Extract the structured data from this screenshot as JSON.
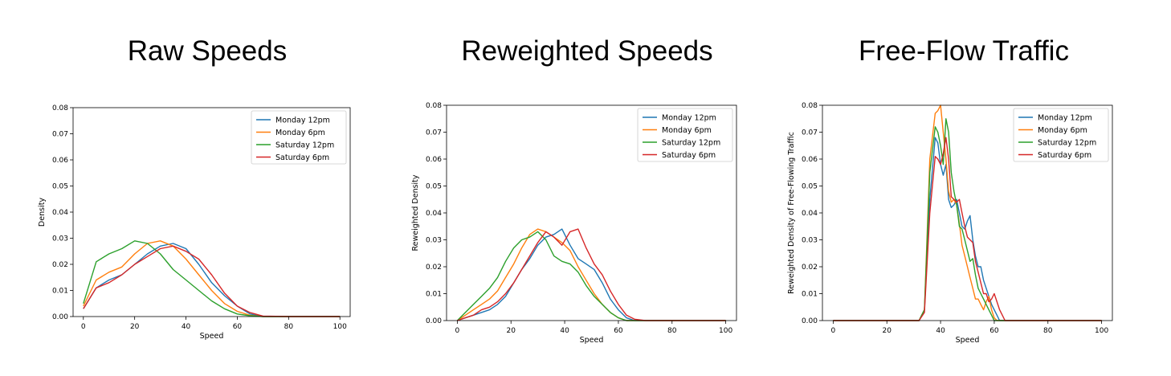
{
  "panels": [
    {
      "title": "Raw Speeds"
    },
    {
      "title": "Reweighted Speeds"
    },
    {
      "title": "Free-Flow Traffic"
    }
  ],
  "colors": {
    "monday_12pm": "#1f77b4",
    "monday_6pm": "#ff7f0e",
    "saturday_12pm": "#2ca02c",
    "saturday_6pm": "#d62728"
  },
  "chart_data": [
    {
      "type": "line",
      "title": "Raw Speeds",
      "xlabel": "Speed",
      "ylabel": "Density",
      "xlim": [
        -4,
        104
      ],
      "ylim": [
        0,
        0.08
      ],
      "xticks": [
        0,
        20,
        40,
        60,
        80,
        100
      ],
      "yticks": [
        0.0,
        0.01,
        0.02,
        0.03,
        0.04,
        0.05,
        0.06,
        0.07,
        0.08
      ],
      "ytick_labels": [
        "0.00",
        "0.01",
        "0.02",
        "0.03",
        "0.04",
        "0.05",
        "0.06",
        "0.07",
        "0.08"
      ],
      "legend": "top-right",
      "x": [
        0,
        5,
        10,
        15,
        20,
        25,
        30,
        35,
        40,
        45,
        50,
        55,
        60,
        65,
        70,
        80,
        90,
        100
      ],
      "series": [
        {
          "name": "Monday 12pm",
          "color": "#1f77b4",
          "values": [
            0.003,
            0.011,
            0.014,
            0.016,
            0.02,
            0.024,
            0.027,
            0.028,
            0.026,
            0.02,
            0.013,
            0.008,
            0.004,
            0.001,
            0.0,
            0.0,
            0.0,
            0.0
          ]
        },
        {
          "name": "Monday 6pm",
          "color": "#ff7f0e",
          "values": [
            0.004,
            0.014,
            0.017,
            0.019,
            0.024,
            0.028,
            0.029,
            0.027,
            0.022,
            0.016,
            0.01,
            0.005,
            0.002,
            0.0005,
            0.0,
            0.0,
            0.0,
            0.0
          ]
        },
        {
          "name": "Saturday 12pm",
          "color": "#2ca02c",
          "values": [
            0.005,
            0.021,
            0.024,
            0.026,
            0.029,
            0.028,
            0.024,
            0.018,
            0.014,
            0.01,
            0.006,
            0.003,
            0.001,
            0.0003,
            0.0,
            0.0,
            0.0,
            0.0
          ]
        },
        {
          "name": "Saturday 6pm",
          "color": "#d62728",
          "values": [
            0.003,
            0.011,
            0.013,
            0.016,
            0.02,
            0.023,
            0.026,
            0.027,
            0.025,
            0.022,
            0.016,
            0.009,
            0.004,
            0.0015,
            0.0002,
            0.0,
            0.0,
            0.0
          ]
        }
      ]
    },
    {
      "type": "line",
      "title": "Reweighted Speeds",
      "xlabel": "Speed",
      "ylabel": "Reweighted Density",
      "xlim": [
        -4,
        104
      ],
      "ylim": [
        0,
        0.08
      ],
      "xticks": [
        0,
        20,
        40,
        60,
        80,
        100
      ],
      "yticks": [
        0.0,
        0.01,
        0.02,
        0.03,
        0.04,
        0.05,
        0.06,
        0.07,
        0.08
      ],
      "ytick_labels": [
        "0.00",
        "0.01",
        "0.02",
        "0.03",
        "0.04",
        "0.05",
        "0.06",
        "0.07",
        "0.08"
      ],
      "legend": "top-right",
      "x": [
        0,
        3,
        6,
        9,
        12,
        15,
        18,
        21,
        24,
        27,
        30,
        33,
        36,
        39,
        42,
        45,
        48,
        51,
        54,
        57,
        60,
        63,
        66,
        70,
        80,
        90,
        100
      ],
      "series": [
        {
          "name": "Monday 12pm",
          "color": "#1f77b4",
          "values": [
            0.0,
            0.001,
            0.002,
            0.003,
            0.004,
            0.006,
            0.009,
            0.014,
            0.019,
            0.023,
            0.028,
            0.031,
            0.032,
            0.034,
            0.028,
            0.023,
            0.021,
            0.019,
            0.014,
            0.008,
            0.004,
            0.001,
            0.0,
            0.0,
            0.0,
            0.0,
            0.0
          ]
        },
        {
          "name": "Monday 6pm",
          "color": "#ff7f0e",
          "values": [
            0.0,
            0.002,
            0.004,
            0.006,
            0.008,
            0.011,
            0.016,
            0.021,
            0.027,
            0.032,
            0.034,
            0.033,
            0.031,
            0.029,
            0.026,
            0.02,
            0.015,
            0.01,
            0.006,
            0.003,
            0.001,
            0.0,
            0.0,
            0.0,
            0.0,
            0.0,
            0.0
          ]
        },
        {
          "name": "Saturday 12pm",
          "color": "#2ca02c",
          "values": [
            0.0,
            0.003,
            0.006,
            0.009,
            0.012,
            0.016,
            0.022,
            0.027,
            0.03,
            0.031,
            0.033,
            0.03,
            0.024,
            0.022,
            0.021,
            0.018,
            0.013,
            0.009,
            0.006,
            0.003,
            0.001,
            0.0,
            0.0,
            0.0,
            0.0,
            0.0,
            0.0
          ]
        },
        {
          "name": "Saturday 6pm",
          "color": "#d62728",
          "values": [
            0.0,
            0.001,
            0.002,
            0.004,
            0.005,
            0.007,
            0.01,
            0.014,
            0.019,
            0.024,
            0.029,
            0.033,
            0.031,
            0.028,
            0.033,
            0.034,
            0.027,
            0.021,
            0.017,
            0.011,
            0.006,
            0.002,
            0.0005,
            0.0,
            0.0,
            0.0,
            0.0
          ]
        }
      ]
    },
    {
      "type": "line",
      "title": "Free-Flow Traffic",
      "xlabel": "Speed",
      "ylabel": "Reweighted Density of Free-Flowing Traffic",
      "xlim": [
        -4,
        104
      ],
      "ylim": [
        0,
        0.08
      ],
      "xticks": [
        0,
        20,
        40,
        60,
        80,
        100
      ],
      "yticks": [
        0.0,
        0.01,
        0.02,
        0.03,
        0.04,
        0.05,
        0.06,
        0.07,
        0.08
      ],
      "ytick_labels": [
        "0.00",
        "0.01",
        "0.02",
        "0.03",
        "0.04",
        "0.05",
        "0.06",
        "0.07",
        "0.08"
      ],
      "legend": "top-right",
      "x": [
        0,
        20,
        32,
        34,
        36,
        38,
        39,
        40,
        41,
        42,
        43,
        44,
        45,
        46,
        47,
        48,
        49,
        50,
        51,
        52,
        53,
        54,
        55,
        56,
        57,
        58,
        59,
        60,
        61,
        62,
        63,
        64,
        65,
        70,
        80,
        90,
        100
      ],
      "series": [
        {
          "name": "Monday 12pm",
          "color": "#1f77b4",
          "values": [
            0.0,
            0.0,
            0.0,
            0.004,
            0.045,
            0.068,
            0.066,
            0.058,
            0.054,
            0.058,
            0.045,
            0.042,
            0.043,
            0.045,
            0.04,
            0.035,
            0.034,
            0.037,
            0.039,
            0.03,
            0.024,
            0.02,
            0.02,
            0.015,
            0.012,
            0.009,
            0.006,
            0.004,
            0.002,
            0.0,
            0.0,
            0.0,
            0.0,
            0.0,
            0.0,
            0.0,
            0.0
          ]
        },
        {
          "name": "Monday 6pm",
          "color": "#ff7f0e",
          "values": [
            0.0,
            0.0,
            0.0,
            0.004,
            0.06,
            0.077,
            0.078,
            0.08,
            0.07,
            0.06,
            0.048,
            0.044,
            0.045,
            0.043,
            0.036,
            0.028,
            0.024,
            0.02,
            0.016,
            0.012,
            0.008,
            0.008,
            0.006,
            0.004,
            0.007,
            0.009,
            0.004,
            0.001,
            0.0,
            0.0,
            0.0,
            0.0,
            0.0,
            0.0,
            0.0,
            0.0,
            0.0
          ]
        },
        {
          "name": "Saturday 12pm",
          "color": "#2ca02c",
          "values": [
            0.0,
            0.0,
            0.0,
            0.004,
            0.055,
            0.072,
            0.07,
            0.065,
            0.058,
            0.075,
            0.07,
            0.055,
            0.048,
            0.043,
            0.035,
            0.034,
            0.03,
            0.026,
            0.022,
            0.023,
            0.017,
            0.012,
            0.01,
            0.008,
            0.006,
            0.004,
            0.002,
            0.0,
            0.0,
            0.0,
            0.0,
            0.0,
            0.0,
            0.0,
            0.0,
            0.0,
            0.0
          ]
        },
        {
          "name": "Saturday 6pm",
          "color": "#d62728",
          "values": [
            0.0,
            0.0,
            0.0,
            0.003,
            0.04,
            0.061,
            0.06,
            0.058,
            0.062,
            0.068,
            0.06,
            0.046,
            0.045,
            0.044,
            0.045,
            0.04,
            0.035,
            0.031,
            0.03,
            0.029,
            0.022,
            0.018,
            0.014,
            0.01,
            0.01,
            0.007,
            0.008,
            0.01,
            0.007,
            0.004,
            0.002,
            0.0,
            0.0,
            0.0,
            0.0,
            0.0,
            0.0
          ]
        }
      ]
    }
  ]
}
